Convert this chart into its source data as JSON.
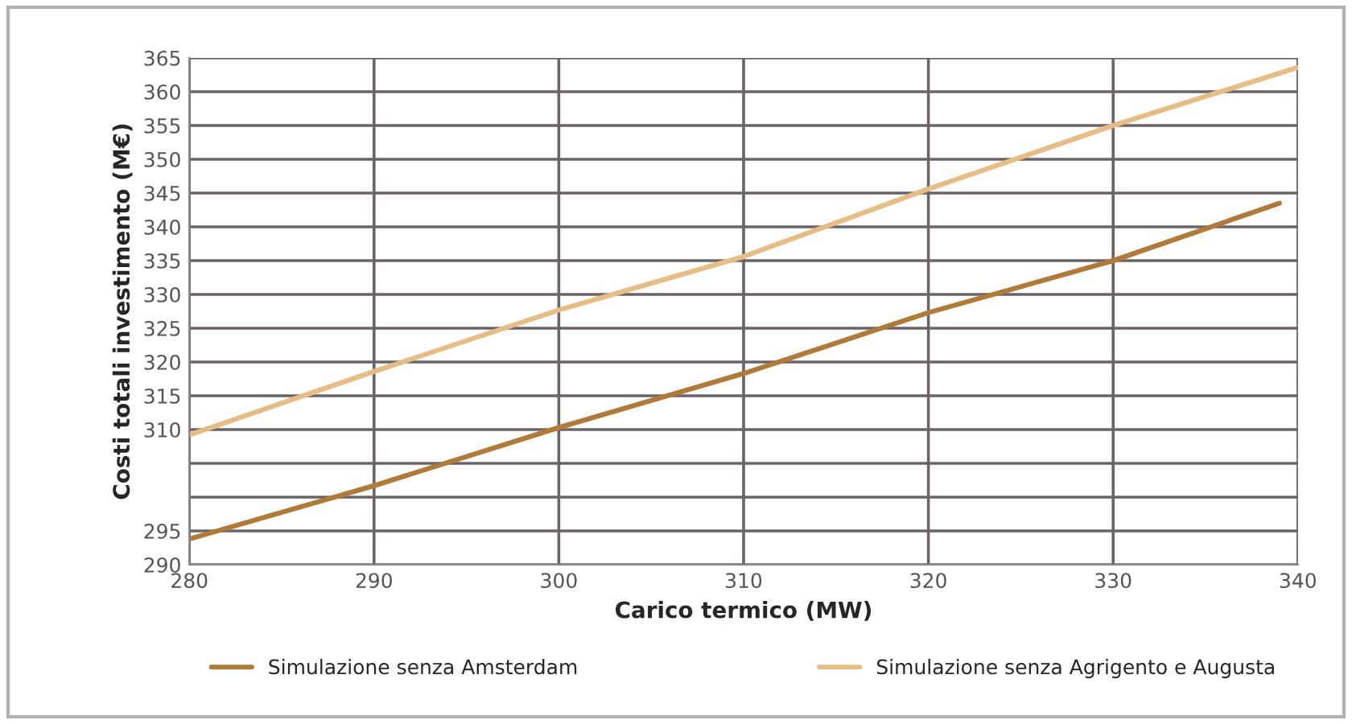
{
  "chart_data": {
    "type": "line",
    "xlabel": "Carico termico (MW)",
    "ylabel": "Costi totali investimento (M€)",
    "series": [
      {
        "name": "Simulazione senza Amsterdam",
        "color": "#b07a3a",
        "x": [
          280,
          290,
          300,
          310,
          320,
          330,
          339
        ],
        "values": [
          293.8,
          301.7,
          310.3,
          318.3,
          327.3,
          335,
          343.5
        ]
      },
      {
        "name": "Simulazione senza Agrigento e Augusta",
        "color": "#e6bd86",
        "x": [
          280,
          290,
          300,
          310,
          320,
          330,
          340
        ],
        "values": [
          309.2,
          318.6,
          327.7,
          335.6,
          345.6,
          355,
          363.6
        ]
      }
    ],
    "xlim": [
      280,
      340
    ],
    "xticks": [
      280,
      290,
      300,
      310,
      320,
      330,
      340
    ],
    "ylim": [
      290,
      365
    ],
    "yticks": [
      290,
      295,
      {
        "value": 300,
        "label": null
      },
      {
        "value": 305,
        "label": null
      },
      310,
      315,
      320,
      325,
      330,
      335,
      340,
      345,
      350,
      355,
      360,
      365
    ],
    "grid": true,
    "legend": "bottom",
    "marker": "none",
    "line_style": "solid"
  }
}
